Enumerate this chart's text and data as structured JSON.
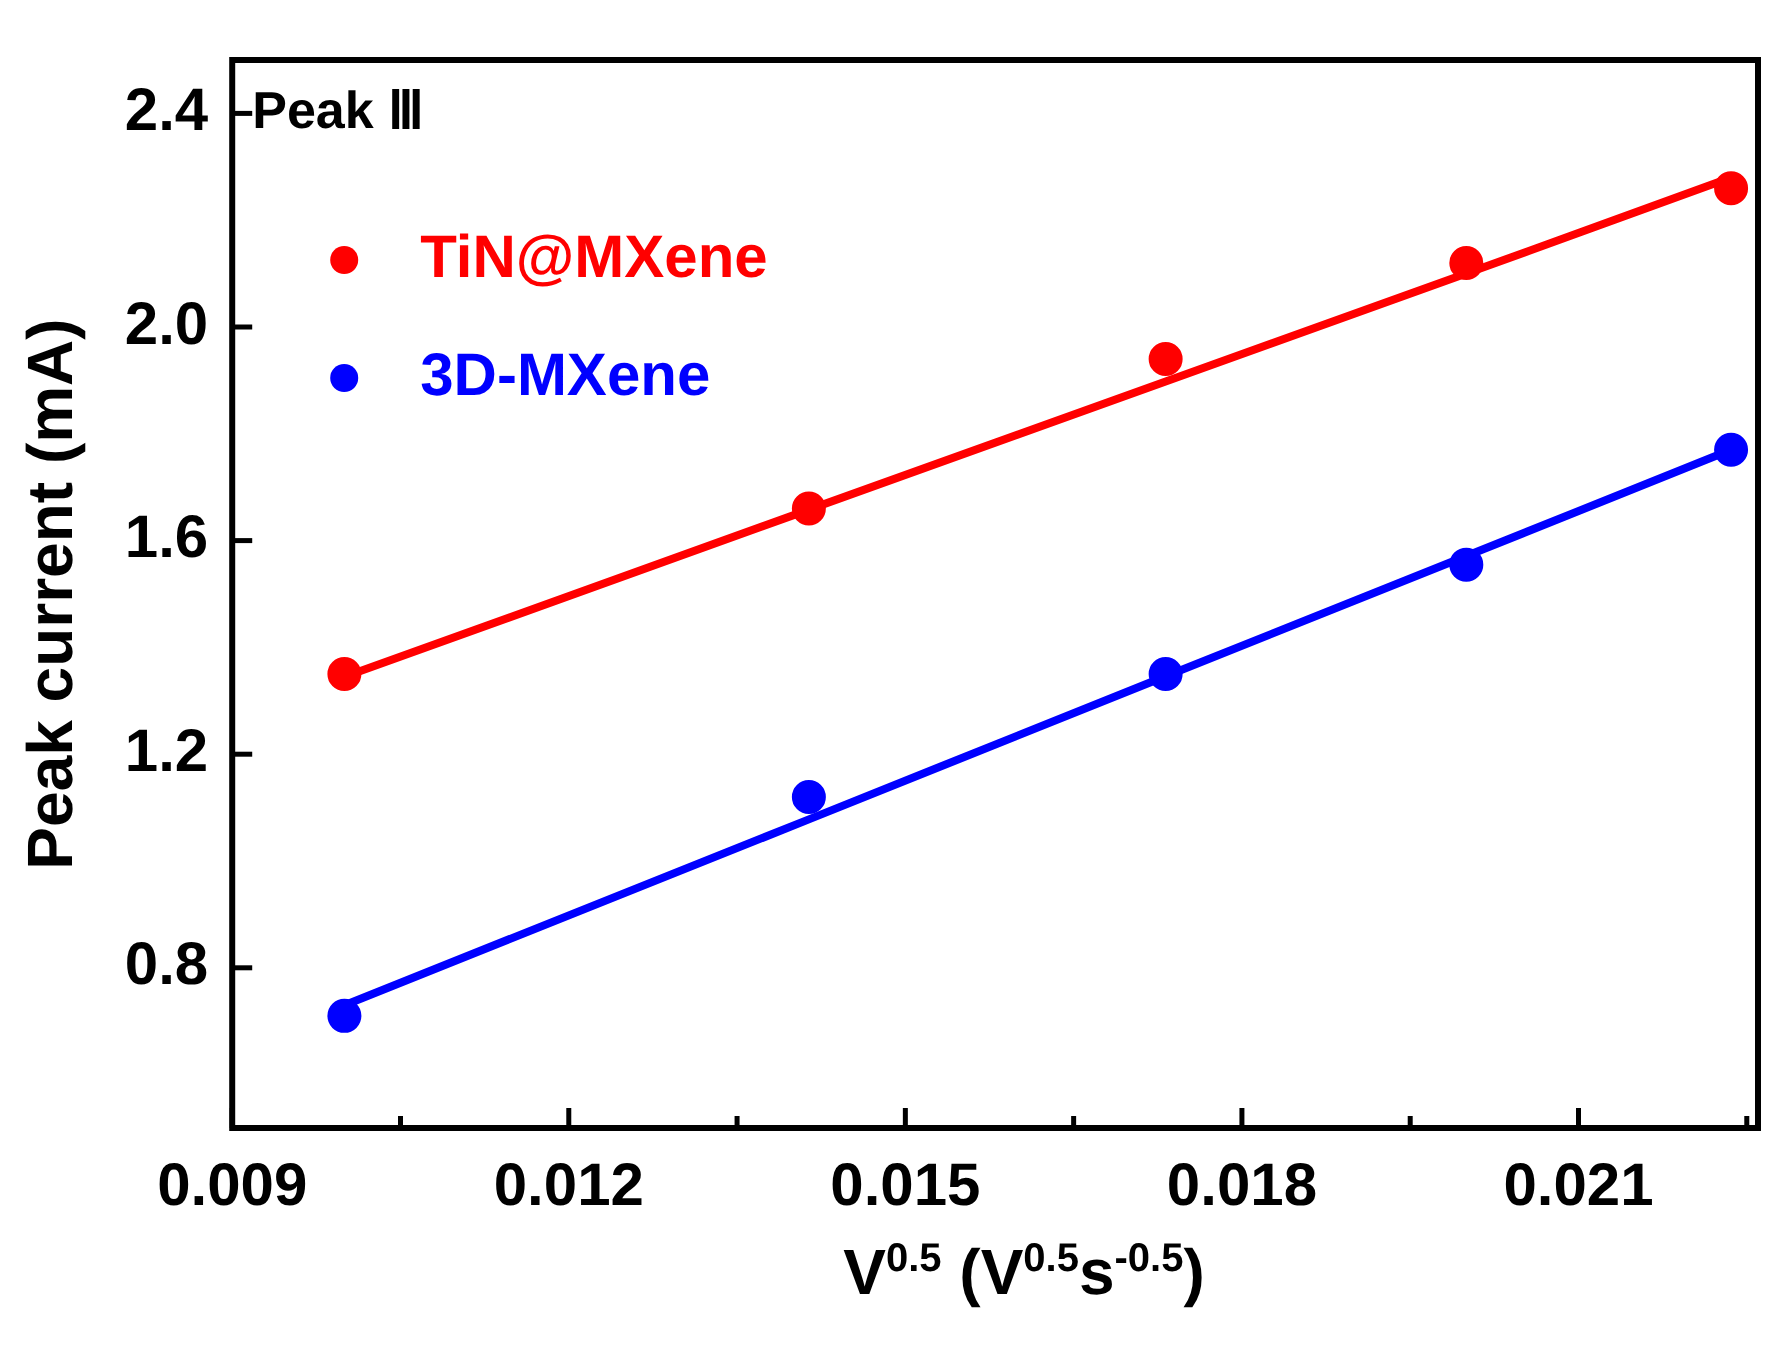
{
  "chart_data": {
    "type": "scatter",
    "xlabel": "V$^{0.5}$ (V$^{0.5}$s$^{-0.5}$)",
    "ylabel": "Peak current (mA)",
    "annotations": [
      "Peak Ⅲ"
    ],
    "x": [
      0.01,
      0.01414,
      0.01732,
      0.02,
      0.02236
    ],
    "series": [
      {
        "name": "TiN@MXene",
        "type": "scatter",
        "color": "#ff0000",
        "marker": "circle",
        "values": [
          1.35,
          1.66,
          1.94,
          2.12,
          2.26
        ]
      },
      {
        "name": "3D-MXene",
        "type": "scatter",
        "color": "#0000ff",
        "marker": "circle",
        "values": [
          0.71,
          1.12,
          1.35,
          1.555,
          1.77
        ]
      },
      {
        "type": "line",
        "color": "#ff0000",
        "marker": "none",
        "values": [
          1.345,
          1.658,
          1.898,
          2.1,
          2.28
        ]
      },
      {
        "type": "line",
        "color": "#0000ff",
        "marker": "none",
        "values": [
          0.73,
          1.078,
          1.346,
          1.571,
          1.77
        ]
      }
    ],
    "xlim": [
      0.009,
      0.0226
    ],
    "ylim": [
      0.5,
      2.5
    ],
    "xticks": [
      0.009,
      {
        "value": 0.0105,
        "label": null
      },
      0.012,
      {
        "value": 0.0135,
        "label": null
      },
      0.015,
      {
        "value": 0.0165,
        "label": null
      },
      0.018,
      {
        "value": 0.0195,
        "label": null
      },
      0.021,
      {
        "value": 0.0225,
        "label": null
      }
    ],
    "yticks": [
      0.8,
      1.2,
      1.6,
      {
        "value": 2.0,
        "label": "2.0"
      },
      2.4
    ],
    "grid": false,
    "legend": "top left"
  }
}
